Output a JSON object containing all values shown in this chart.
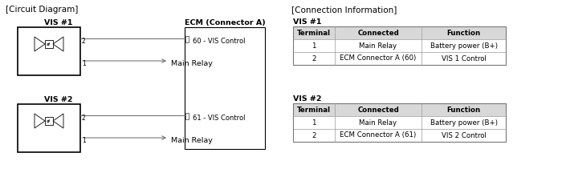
{
  "bg_color": "#ffffff",
  "title_left": "[Circuit Diagram]",
  "title_right": "[Connection Information]",
  "ecm_label": "ECM (Connector A)",
  "vis1_label": "VIS #1",
  "vis2_label": "VIS #2",
  "pin60_label": "60 - VIS Control",
  "pin61_label": "61 - VIS Control",
  "main_relay_label": "Main Relay",
  "table_vis1_title": "VIS #1",
  "table_vis2_title": "VIS #2",
  "table_headers": [
    "Terminal",
    "Connected",
    "Function"
  ],
  "table_vis1_rows": [
    [
      "1",
      "Main Relay",
      "Battery power (B+)"
    ],
    [
      "2",
      "ECM Connector A (60)",
      "VIS 1 Control"
    ]
  ],
  "table_vis2_rows": [
    [
      "1",
      "Main Relay",
      "Battery power (B+)"
    ],
    [
      "2",
      "ECM Connector A (61)",
      "VIS 2 Control"
    ]
  ],
  "line_color": "#666666",
  "box_color": "#000000",
  "table_line_color": "#999999",
  "font_size_title": 7.5,
  "font_size_label": 6.8,
  "font_size_small": 6.0,
  "font_size_table": 6.2
}
